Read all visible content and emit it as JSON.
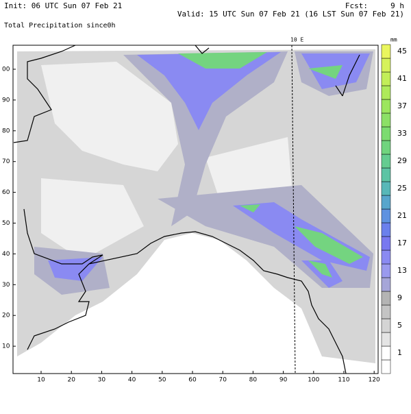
{
  "header": {
    "init": "Init: 06 UTC Sun 07 Feb 21",
    "fcst": "Fcst:     9 h",
    "valid": "Valid: 15 UTC Sun 07 Feb 21 (16 LST Sun 07 Feb 21)",
    "field": "Total Precipitation since0h"
  },
  "map": {
    "meridian_label": "10 E",
    "x_ticks": [
      10,
      20,
      30,
      40,
      50,
      60,
      70,
      80,
      90,
      100,
      110,
      120
    ],
    "y_ticks": [
      10,
      20,
      30,
      40,
      50,
      60,
      70,
      80,
      90,
      {
        "value": 100,
        "label": "00"
      }
    ]
  },
  "colorbar": {
    "unit": "mm",
    "labels": [
      1,
      5,
      9,
      13,
      17,
      21,
      25,
      29,
      33,
      37,
      41,
      45
    ],
    "colors": [
      "#ffffff",
      "#ffffff",
      "#e4e4e4",
      "#d4d4d4",
      "#c4c4c4",
      "#b4b4b4",
      "#a6a6d8",
      "#9a9aee",
      "#8a8af2",
      "#7878f0",
      "#6a80ec",
      "#5e92e0",
      "#58a6cc",
      "#58b8b8",
      "#5cc4a4",
      "#64cc90",
      "#70d47e",
      "#7cdc70",
      "#8ce066",
      "#9ce65e",
      "#aeea5a",
      "#c2ee58",
      "#d6f25a",
      "#eaf65e"
    ]
  }
}
